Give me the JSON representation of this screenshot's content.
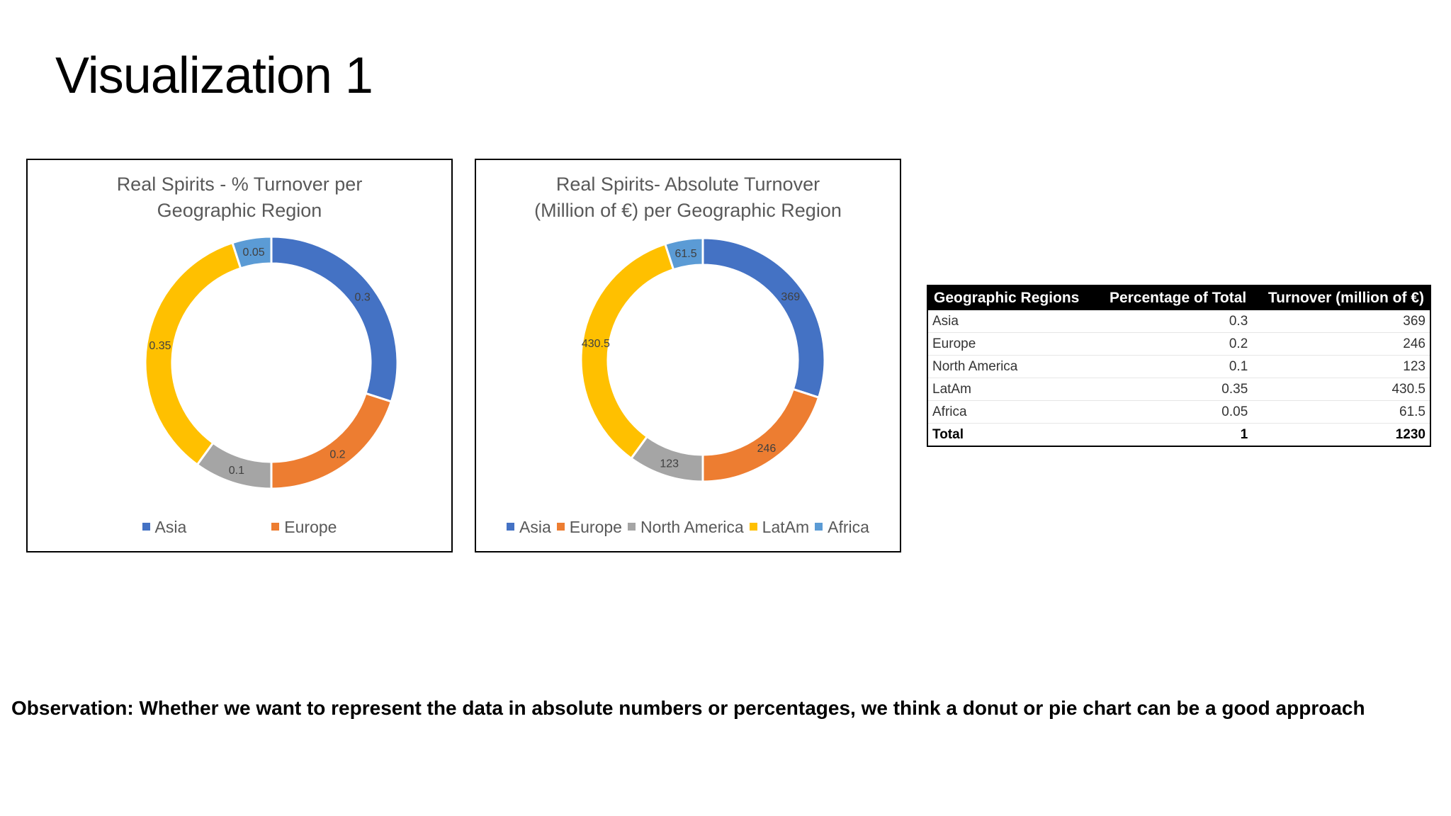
{
  "slide": {
    "title": "Visualization 1",
    "observation": "Observation: Whether we want to represent the data in absolute numbers or percentages, we think a donut or pie chart can be a good approach"
  },
  "colors": {
    "Asia": "#4472C4",
    "Europe": "#ED7D31",
    "North America": "#A5A5A5",
    "LatAm": "#FFC000",
    "Africa": "#5B9BD5"
  },
  "chart_data": [
    {
      "type": "donut",
      "title_lines": [
        "Real Spirits - % Turnover per",
        "Geographic Region"
      ],
      "categories": [
        "Asia",
        "Europe",
        "North America",
        "LatAm",
        "Africa"
      ],
      "values": [
        0.3,
        0.2,
        0.1,
        0.35,
        0.05
      ],
      "data_labels": [
        "0.3",
        "0.2",
        "0.1",
        "0.35",
        "0.05"
      ],
      "legend": [
        "Asia",
        "Europe"
      ],
      "legend_position": "bottom"
    },
    {
      "type": "donut",
      "title_lines": [
        "Real Spirits- Absolute Turnover",
        "(Million of €) per Geographic Region"
      ],
      "categories": [
        "Asia",
        "Europe",
        "North America",
        "LatAm",
        "Africa"
      ],
      "values": [
        369,
        246,
        123,
        430.5,
        61.5
      ],
      "data_labels": [
        "369",
        "246",
        "123",
        "430.5",
        "61.5"
      ],
      "legend": [
        "Asia",
        "Europe",
        "North America",
        "LatAm",
        "Africa"
      ],
      "legend_position": "bottom"
    }
  ],
  "table": {
    "headers": [
      "Geographic Regions",
      "Percentage of Total",
      "Turnover (million of €)"
    ],
    "rows": [
      [
        "Asia",
        "0.3",
        "369"
      ],
      [
        "Europe",
        "0.2",
        "246"
      ],
      [
        "North America",
        "0.1",
        "123"
      ],
      [
        "LatAm",
        "0.35",
        "430.5"
      ],
      [
        "Africa",
        "0.05",
        "61.5"
      ]
    ],
    "total": [
      "Total",
      "1",
      "1230"
    ]
  }
}
